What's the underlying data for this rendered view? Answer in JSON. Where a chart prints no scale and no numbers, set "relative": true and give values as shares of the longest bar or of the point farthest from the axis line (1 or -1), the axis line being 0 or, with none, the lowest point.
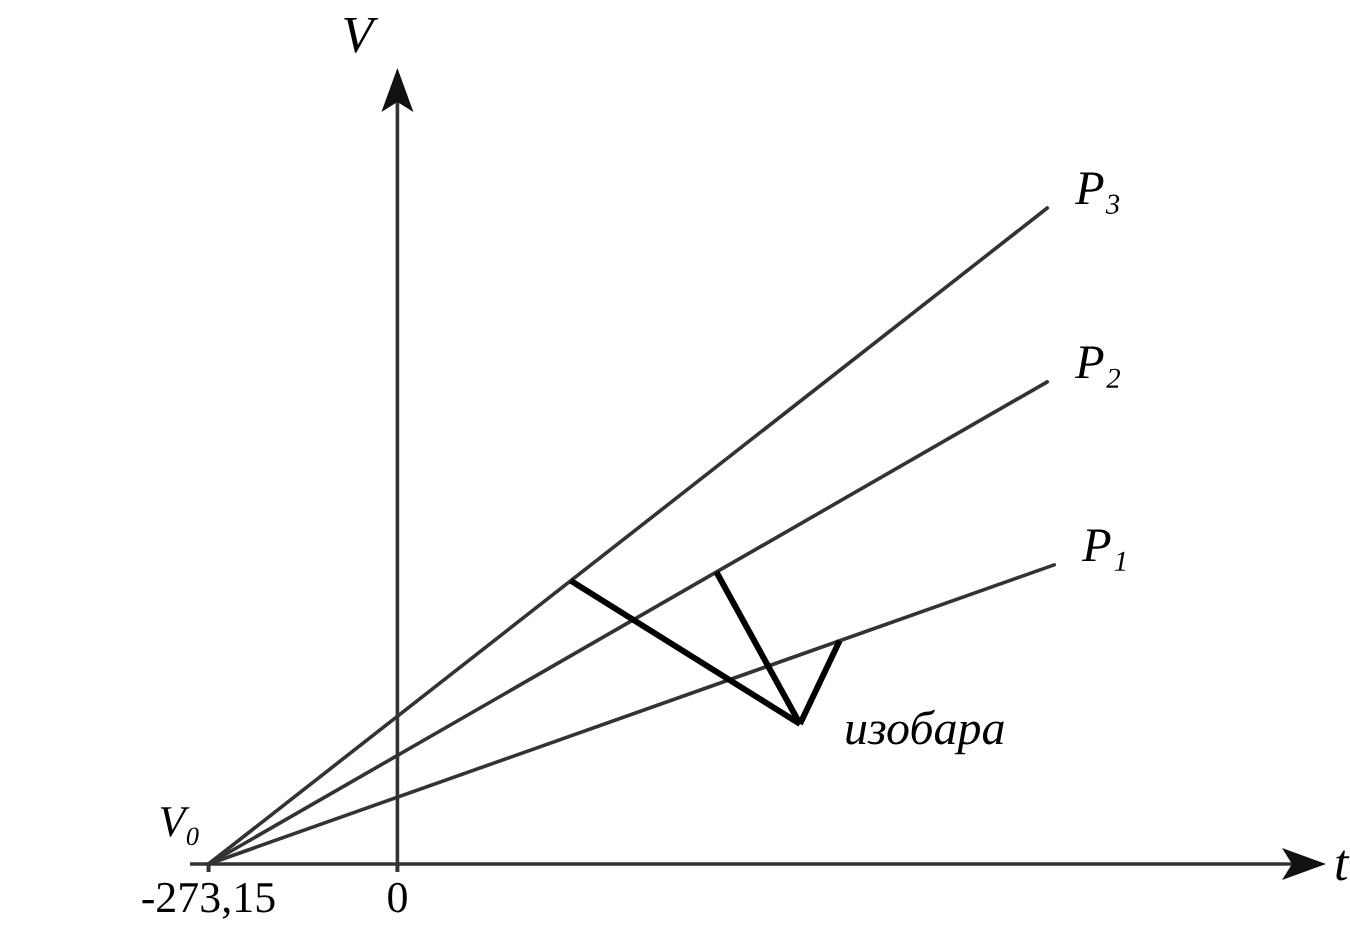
{
  "chart_data": {
    "type": "line",
    "relative": true,
    "xlabel": "t",
    "ylabel": "V",
    "xlim": [
      -300,
      1320
    ],
    "xticks": [
      {
        "value": -273.15,
        "label": "-273,15"
      },
      0
    ],
    "series": [
      {
        "name": "P₃",
        "color": "#333333",
        "x": [
          -273.15,
          940
        ],
        "values": [
          0,
          1
        ]
      },
      {
        "name": "P₂",
        "color": "#333333",
        "x": [
          -273.15,
          940
        ],
        "values": [
          0,
          0.735
        ]
      },
      {
        "name": "P₁",
        "color": "#333333",
        "x": [
          -273.15,
          950
        ],
        "values": [
          0,
          0.456
        ]
      }
    ],
    "annotations": [
      {
        "text": "V₀",
        "x": -273.15,
        "y": 0
      },
      "изобара"
    ],
    "line_style": "solid"
  }
}
